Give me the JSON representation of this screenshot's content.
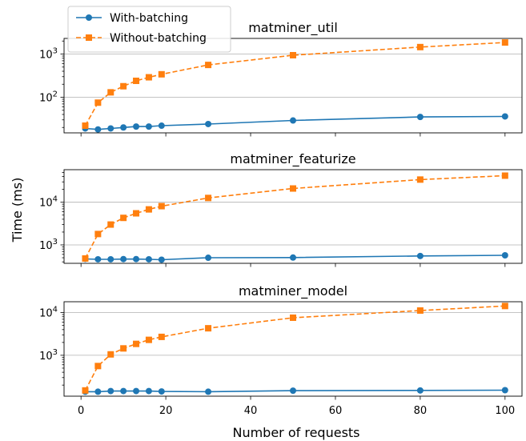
{
  "chart_data": {
    "type": "line",
    "ylabel": "Time (ms)",
    "xlabel": "Number of requests",
    "xlim": [
      -4,
      104
    ],
    "xticks": [
      0,
      20,
      40,
      60,
      80,
      100
    ],
    "x": [
      1,
      4,
      7,
      10,
      13,
      16,
      19,
      30,
      50,
      80,
      100
    ],
    "legend": {
      "position": "top-left",
      "entries": [
        "With-batching",
        "Without-batching"
      ]
    },
    "colors": {
      "with": "#1f77b4",
      "without": "#ff7f0e"
    },
    "grid": "y-major",
    "yscale": "log",
    "panels": [
      {
        "title": "matminer_util",
        "ylim": [
          15,
          2300
        ],
        "yticks": [
          {
            "value": 100,
            "base": "10",
            "exp": "2"
          },
          {
            "value": 1000,
            "base": "10",
            "exp": "3"
          }
        ],
        "series": [
          {
            "name": "With-batching",
            "values": [
              19,
              18,
              19,
              20,
              21,
              21,
              22,
              24,
              29,
              35,
              36
            ]
          },
          {
            "name": "Without-batching",
            "values": [
              22,
              75,
              130,
              180,
              240,
              290,
              340,
              560,
              940,
              1450,
              1850
            ]
          }
        ]
      },
      {
        "title": "matminer_featurize",
        "ylim": [
          370,
          58000
        ],
        "yticks": [
          {
            "value": 1000,
            "base": "10",
            "exp": "3"
          },
          {
            "value": 10000,
            "base": "10",
            "exp": "4"
          }
        ],
        "series": [
          {
            "name": "With-batching",
            "values": [
              470,
              460,
              460,
              465,
              465,
              460,
              450,
              500,
              505,
              550,
              570
            ]
          },
          {
            "name": "Without-batching",
            "values": [
              480,
              1800,
              3000,
              4300,
              5500,
              6800,
              8100,
              12600,
              21000,
              34000,
              42000
            ]
          }
        ]
      },
      {
        "title": "matminer_model",
        "ylim": [
          110,
          18000
        ],
        "yticks": [
          {
            "value": 1000,
            "base": "10",
            "exp": "3"
          },
          {
            "value": 10000,
            "base": "10",
            "exp": "4"
          }
        ],
        "series": [
          {
            "name": "With-batching",
            "values": [
              140,
              140,
              145,
              145,
              145,
              145,
              142,
              140,
              148,
              150,
              152
            ]
          },
          {
            "name": "Without-batching",
            "values": [
              150,
              560,
              1050,
              1450,
              1850,
              2300,
              2700,
              4300,
              7600,
              11200,
              14300
            ]
          }
        ]
      }
    ]
  }
}
